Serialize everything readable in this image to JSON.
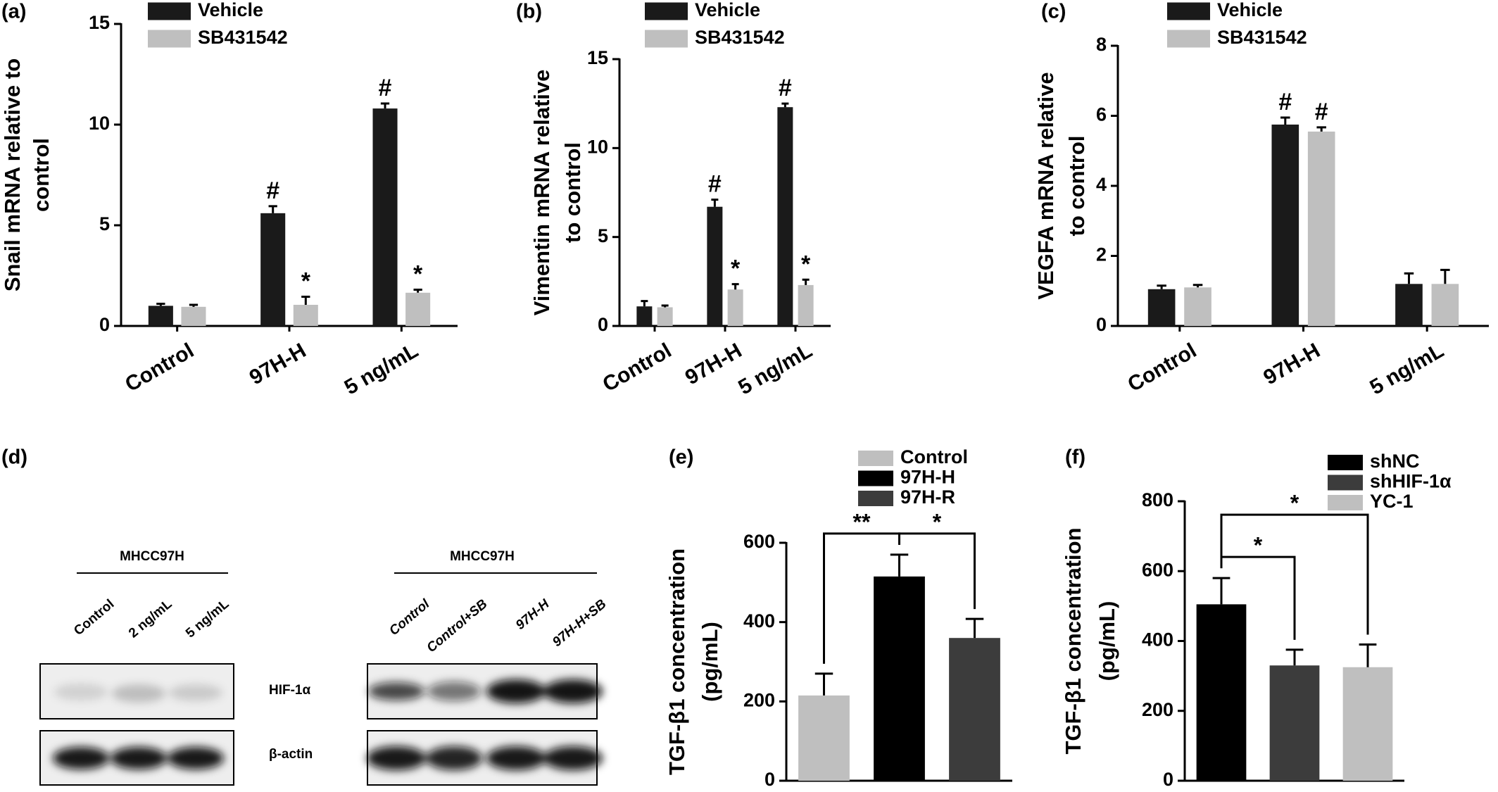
{
  "chart_data": [
    {
      "type": "bar",
      "panel": "(a)",
      "ylabel": [
        "Snail mRNA relative to",
        "control"
      ],
      "ylim": [
        0,
        15
      ],
      "yticks": [
        0,
        5,
        10,
        15
      ],
      "categories": [
        "Control",
        "97H-H",
        "5 ng/mL"
      ],
      "series": [
        {
          "name": "Vehicle",
          "color": "#1a1a1a",
          "values": [
            1.0,
            5.6,
            10.8
          ],
          "errors": [
            0.1,
            0.35,
            0.25
          ],
          "labels": [
            null,
            "#",
            "#"
          ]
        },
        {
          "name": "SB431542",
          "color": "#bfbfbf",
          "values": [
            0.95,
            1.05,
            1.65
          ],
          "errors": [
            0.1,
            0.4,
            0.15
          ],
          "labels": [
            null,
            "*",
            "*"
          ]
        }
      ]
    },
    {
      "type": "bar",
      "panel": "(b)",
      "ylabel": [
        "Vimentin mRNA relative",
        "to control"
      ],
      "ylim": [
        0,
        15
      ],
      "yticks": [
        0,
        5,
        10,
        15
      ],
      "categories": [
        "Control",
        "97H-H",
        "5 ng/mL"
      ],
      "series": [
        {
          "name": "Vehicle",
          "color": "#1a1a1a",
          "values": [
            1.1,
            6.7,
            12.3
          ],
          "errors": [
            0.3,
            0.4,
            0.2
          ],
          "labels": [
            null,
            "#",
            "#"
          ]
        },
        {
          "name": "SB431542",
          "color": "#bfbfbf",
          "values": [
            1.05,
            2.05,
            2.3
          ],
          "errors": [
            0.1,
            0.3,
            0.3
          ],
          "labels": [
            null,
            "*",
            "*"
          ]
        }
      ]
    },
    {
      "type": "bar",
      "panel": "(c)",
      "ylabel": [
        "VEGFA mRNA relative",
        "to control"
      ],
      "ylim": [
        0,
        8
      ],
      "yticks": [
        0,
        2,
        4,
        6,
        8
      ],
      "categories": [
        "Control",
        "97H-H",
        "5 ng/mL"
      ],
      "series": [
        {
          "name": "Vehicle",
          "color": "#1a1a1a",
          "values": [
            1.05,
            5.75,
            1.2
          ],
          "errors": [
            0.1,
            0.2,
            0.3
          ],
          "labels": [
            null,
            "#",
            null
          ]
        },
        {
          "name": "SB431542",
          "color": "#bfbfbf",
          "values": [
            1.1,
            5.55,
            1.2
          ],
          "errors": [
            0.07,
            0.12,
            0.4
          ],
          "labels": [
            null,
            "#",
            null
          ]
        }
      ]
    },
    {
      "type": "bar",
      "panel": "(e)",
      "ylabel": [
        "TGF-β1 concentration",
        "(pg/mL)"
      ],
      "ylim": [
        0,
        600
      ],
      "yticks": [
        0,
        200,
        400,
        600
      ],
      "categories": [
        "Control",
        "97H-H",
        "97H-R"
      ],
      "colors": [
        "#bfbfbf",
        "#000000",
        "#3c3c3c"
      ],
      "values": [
        215,
        515,
        360
      ],
      "errors": [
        55,
        55,
        48
      ],
      "brackets": [
        {
          "pair": [
            "Control",
            "97H-H"
          ],
          "label": "**"
        },
        {
          "pair": [
            "97H-H",
            "97H-R"
          ],
          "label": "*"
        }
      ]
    },
    {
      "type": "bar",
      "panel": "(f)",
      "ylabel": [
        "TGF-β1 concentration",
        "(pg/mL)"
      ],
      "ylim": [
        0,
        800
      ],
      "yticks": [
        0,
        200,
        400,
        600,
        800
      ],
      "categories": [
        "shNC",
        "shHIF-1α",
        "YC-1"
      ],
      "colors": [
        "#000000",
        "#3c3c3c",
        "#bfbfbf"
      ],
      "values": [
        505,
        330,
        325
      ],
      "errors": [
        75,
        45,
        65
      ],
      "brackets": [
        {
          "pair": [
            "shNC",
            "shHIF-1α"
          ],
          "label": "*"
        },
        {
          "pair": [
            "shNC",
            "YC-1"
          ],
          "label": "*"
        }
      ]
    }
  ],
  "blot": {
    "panel": "(d)",
    "left": {
      "title": "MHCC97H",
      "lanes": [
        "Control",
        "2 ng/mL",
        "5 ng/mL"
      ]
    },
    "right": {
      "title": "MHCC97H",
      "lanes": [
        "Control",
        "Control+SB",
        "97H-H",
        "97H-H+SB"
      ]
    },
    "rows": [
      "HIF-1α",
      "β-actin"
    ]
  }
}
